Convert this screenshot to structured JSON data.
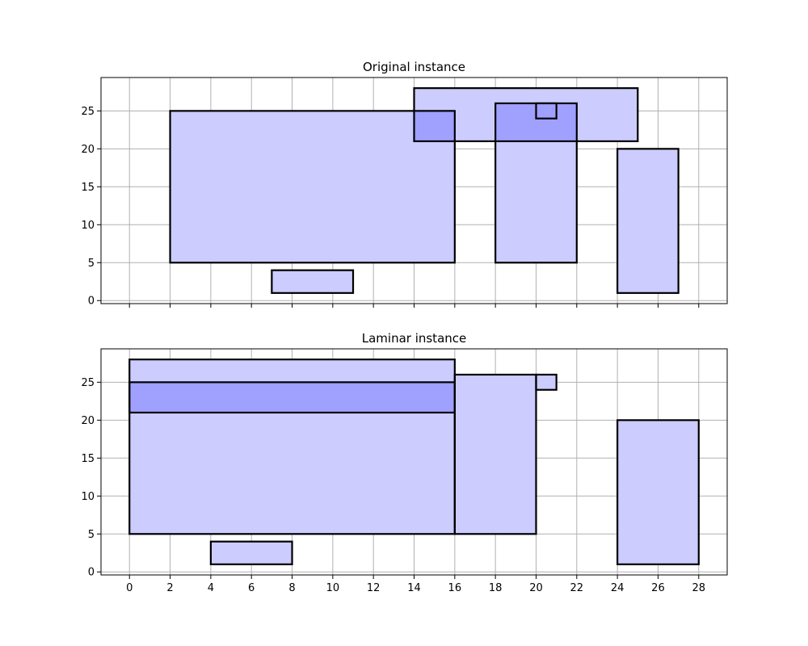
{
  "colors": {
    "rect_fill": "#ccccff",
    "rect_fill_overlap": "#a0a0ff",
    "grid": "#b0b0b0",
    "axes": "#000000",
    "rect_edge": "#000000"
  },
  "chart_data": [
    {
      "type": "rectangles",
      "title": "Original instance",
      "xlim": [
        -1.4,
        29.4
      ],
      "ylim": [
        -0.4,
        29.4
      ],
      "xticks": [
        0,
        2,
        4,
        6,
        8,
        10,
        12,
        14,
        16,
        18,
        20,
        22,
        24,
        26,
        28
      ],
      "xtick_labels_visible": false,
      "yticks": [
        0,
        5,
        10,
        15,
        20,
        25
      ],
      "grid": true,
      "rects": [
        {
          "x0": 2,
          "x1": 16,
          "y0": 5,
          "y1": 25
        },
        {
          "x0": 14,
          "x1": 25,
          "y0": 21,
          "y1": 28
        },
        {
          "x0": 18,
          "x1": 22,
          "y0": 5,
          "y1": 26
        },
        {
          "x0": 20,
          "x1": 21,
          "y0": 24,
          "y1": 26
        },
        {
          "x0": 24,
          "x1": 27,
          "y0": 1,
          "y1": 20
        },
        {
          "x0": 7,
          "x1": 11,
          "y0": 1,
          "y1": 4
        }
      ]
    },
    {
      "type": "rectangles",
      "title": "Laminar instance",
      "xlim": [
        -1.4,
        29.4
      ],
      "ylim": [
        -0.4,
        29.4
      ],
      "xticks": [
        0,
        2,
        4,
        6,
        8,
        10,
        12,
        14,
        16,
        18,
        20,
        22,
        24,
        26,
        28
      ],
      "xtick_labels_visible": true,
      "yticks": [
        0,
        5,
        10,
        15,
        20,
        25
      ],
      "grid": true,
      "rects": [
        {
          "x0": 0,
          "x1": 16,
          "y0": 5,
          "y1": 25
        },
        {
          "x0": 0,
          "x1": 16,
          "y0": 21,
          "y1": 28
        },
        {
          "x0": 16,
          "x1": 20,
          "y0": 5,
          "y1": 26
        },
        {
          "x0": 20,
          "x1": 21,
          "y0": 24,
          "y1": 26
        },
        {
          "x0": 24,
          "x1": 28,
          "y0": 1,
          "y1": 20
        },
        {
          "x0": 4,
          "x1": 8,
          "y0": 1,
          "y1": 4
        }
      ]
    }
  ]
}
